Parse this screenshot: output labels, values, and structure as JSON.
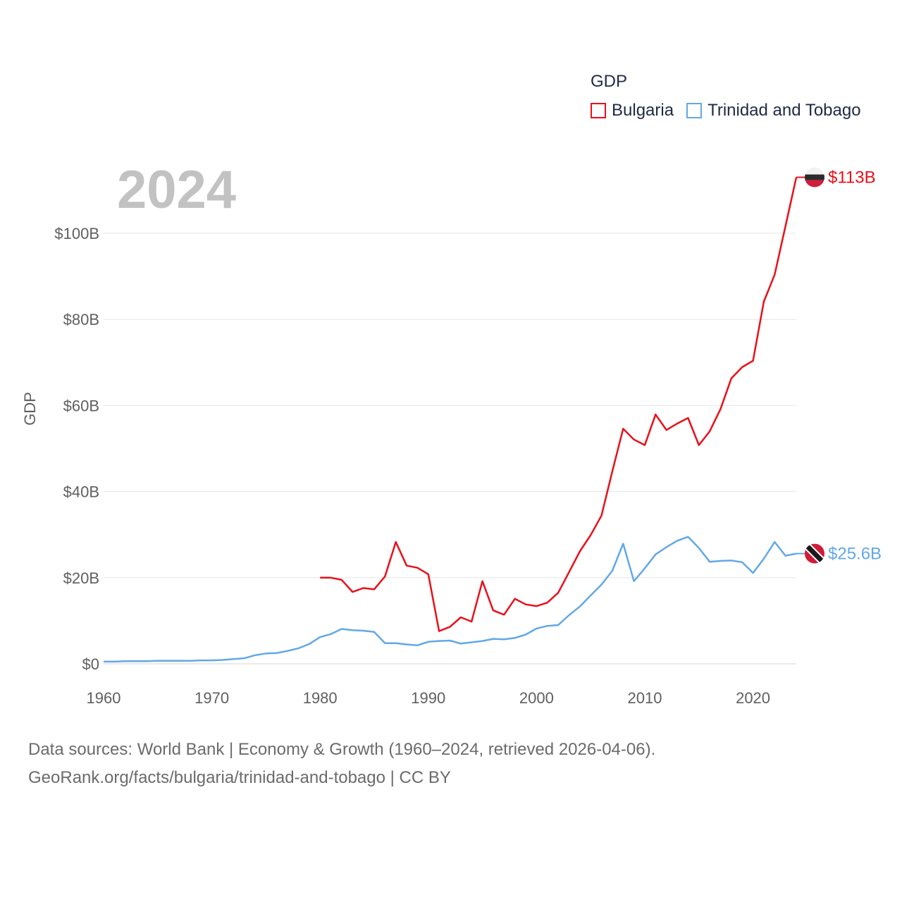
{
  "legend": {
    "title": "GDP",
    "items": [
      {
        "label": "Bulgaria",
        "color": "#e8101a"
      },
      {
        "label": "Trinidad and Tobago",
        "color": "#62a8e6"
      }
    ]
  },
  "year_label": "2024",
  "footer": {
    "line1": "Data sources: World Bank | Economy & Growth (1960–2024, retrieved 2026-04-06).",
    "line2": "GeoRank.org/facts/bulgaria/trinidad-and-tobago | CC BY"
  },
  "chart_data": {
    "type": "line",
    "title": "GDP",
    "xlabel": "",
    "ylabel": "GDP",
    "xlim": [
      1960,
      2024
    ],
    "ylim": [
      0,
      115
    ],
    "y_unit": "billion USD",
    "grid": true,
    "legend_position": "top-right",
    "x_ticks": [
      1960,
      1970,
      1980,
      1990,
      2000,
      2010,
      2020
    ],
    "x_tick_labels": [
      "1960",
      "1970",
      "1980",
      "1990",
      "2000",
      "2010",
      "2020"
    ],
    "y_ticks": [
      0,
      20,
      40,
      60,
      80,
      100
    ],
    "y_tick_labels": [
      "$0",
      "$20B",
      "$40B",
      "$60B",
      "$80B",
      "$100B"
    ],
    "series": [
      {
        "name": "Bulgaria",
        "color": "#e8101a",
        "end_label": "$113B",
        "x": [
          1980,
          1981,
          1982,
          1983,
          1984,
          1985,
          1986,
          1987,
          1988,
          1989,
          1990,
          1991,
          1992,
          1993,
          1994,
          1995,
          1996,
          1997,
          1998,
          1999,
          2000,
          2001,
          2002,
          2003,
          2004,
          2005,
          2006,
          2007,
          2008,
          2009,
          2010,
          2011,
          2012,
          2013,
          2014,
          2015,
          2016,
          2017,
          2018,
          2019,
          2020,
          2021,
          2022,
          2023,
          2024
        ],
        "values": [
          20.0,
          20.0,
          19.5,
          16.7,
          17.6,
          17.3,
          20.3,
          28.3,
          22.8,
          22.3,
          20.8,
          7.6,
          8.6,
          10.8,
          9.8,
          19.2,
          12.4,
          11.4,
          15.1,
          13.8,
          13.4,
          14.2,
          16.5,
          21.3,
          26.1,
          29.9,
          34.4,
          44.7,
          54.6,
          52.1,
          50.8,
          57.9,
          54.3,
          55.8,
          57.1,
          50.8,
          54.0,
          59.2,
          66.3,
          68.9,
          70.4,
          84.1,
          90.4,
          101.6,
          113.0
        ]
      },
      {
        "name": "Trinidad and Tobago",
        "color": "#62a8e6",
        "end_label": "$25.6B",
        "x": [
          1960,
          1961,
          1962,
          1963,
          1964,
          1965,
          1966,
          1967,
          1968,
          1969,
          1970,
          1971,
          1972,
          1973,
          1974,
          1975,
          1976,
          1977,
          1978,
          1979,
          1980,
          1981,
          1982,
          1983,
          1984,
          1985,
          1986,
          1987,
          1988,
          1989,
          1990,
          1991,
          1992,
          1993,
          1994,
          1995,
          1996,
          1997,
          1998,
          1999,
          2000,
          2001,
          2002,
          2003,
          2004,
          2005,
          2006,
          2007,
          2008,
          2009,
          2010,
          2011,
          2012,
          2013,
          2014,
          2015,
          2016,
          2017,
          2018,
          2019,
          2020,
          2021,
          2022,
          2023,
          2024
        ],
        "values": [
          0.5,
          0.5,
          0.6,
          0.6,
          0.6,
          0.7,
          0.7,
          0.7,
          0.7,
          0.8,
          0.8,
          0.9,
          1.1,
          1.3,
          2.0,
          2.4,
          2.5,
          3.0,
          3.6,
          4.6,
          6.2,
          6.9,
          8.1,
          7.8,
          7.7,
          7.4,
          4.8,
          4.8,
          4.5,
          4.3,
          5.1,
          5.3,
          5.4,
          4.7,
          5.0,
          5.3,
          5.8,
          5.7,
          6.0,
          6.8,
          8.2,
          8.8,
          9.0,
          11.3,
          13.3,
          15.9,
          18.4,
          21.6,
          27.9,
          19.2,
          22.2,
          25.4,
          27.1,
          28.6,
          29.5,
          26.9,
          23.7,
          23.9,
          24.0,
          23.6,
          21.1,
          24.4,
          28.3,
          25.1,
          25.6
        ]
      }
    ]
  }
}
